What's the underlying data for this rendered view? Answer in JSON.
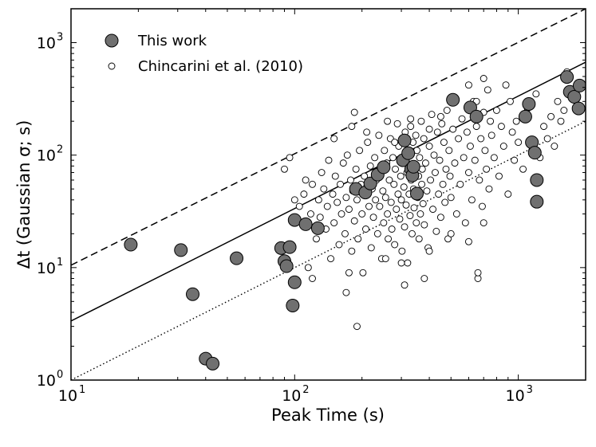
{
  "chart_data": {
    "type": "scatter",
    "xscale": "log",
    "yscale": "log",
    "xlim": [
      10,
      2000
    ],
    "ylim": [
      1,
      2000
    ],
    "xlabel": "Peak Time (s)",
    "ylabel": "Δt (Gaussian σ; s)",
    "xticks": [
      {
        "base": "10",
        "exp": "1",
        "value": 10
      },
      {
        "base": "10",
        "exp": "2",
        "value": 100
      },
      {
        "base": "10",
        "exp": "3",
        "value": 1000
      }
    ],
    "yticks": [
      {
        "base": "10",
        "exp": "0",
        "value": 1
      },
      {
        "base": "10",
        "exp": "1",
        "value": 10
      },
      {
        "base": "10",
        "exp": "2",
        "value": 100
      },
      {
        "base": "10",
        "exp": "3",
        "value": 1000
      }
    ],
    "legend": {
      "position": "top-left"
    },
    "lines": [
      {
        "style": "dashed",
        "color": "#000000",
        "x": [
          10,
          2000
        ],
        "y": [
          10.5,
          2000
        ]
      },
      {
        "style": "solid",
        "color": "#000000",
        "x": [
          10,
          2000
        ],
        "y": [
          3.35,
          670
        ]
      },
      {
        "style": "dotted",
        "color": "#000000",
        "x": [
          10,
          2000
        ],
        "y": [
          1.0,
          200
        ]
      }
    ],
    "series": [
      {
        "name": "This work",
        "marker": "large-filled-circle",
        "color": "#707070",
        "points": [
          [
            18.5,
            16.0
          ],
          [
            31,
            14.3
          ],
          [
            35,
            5.8
          ],
          [
            40,
            1.55
          ],
          [
            43,
            1.4
          ],
          [
            55,
            12.1
          ],
          [
            87,
            14.9
          ],
          [
            90,
            11.4
          ],
          [
            92,
            10.3
          ],
          [
            95,
            15.2
          ],
          [
            98,
            4.6
          ],
          [
            100,
            7.4
          ],
          [
            100,
            26.5
          ],
          [
            112,
            24.3
          ],
          [
            127,
            22.4
          ],
          [
            188,
            50
          ],
          [
            207,
            46.5
          ],
          [
            218,
            56
          ],
          [
            235,
            67
          ],
          [
            250,
            78
          ],
          [
            305,
            90
          ],
          [
            310,
            135
          ],
          [
            322,
            104
          ],
          [
            332,
            74.7
          ],
          [
            336,
            66
          ],
          [
            340,
            78.8
          ],
          [
            352,
            45.5
          ],
          [
            510,
            310
          ],
          [
            610,
            265
          ],
          [
            650,
            220
          ],
          [
            1075,
            220
          ],
          [
            1115,
            285
          ],
          [
            1150,
            130
          ],
          [
            1185,
            105
          ],
          [
            1210,
            60
          ],
          [
            1210,
            38.5
          ],
          [
            1650,
            495
          ],
          [
            1700,
            365
          ],
          [
            1780,
            330
          ],
          [
            1860,
            260
          ],
          [
            1880,
            415
          ]
        ]
      },
      {
        "name": "Chincarini et al. (2010)",
        "marker": "small-open-circle",
        "color": "#ffffff",
        "points": [
          [
            90,
            75
          ],
          [
            95,
            95
          ],
          [
            100,
            40
          ],
          [
            105,
            35
          ],
          [
            110,
            45
          ],
          [
            112,
            60
          ],
          [
            118,
            30
          ],
          [
            120,
            55
          ],
          [
            125,
            18
          ],
          [
            128,
            40
          ],
          [
            130,
            28
          ],
          [
            132,
            70
          ],
          [
            135,
            50
          ],
          [
            138,
            22
          ],
          [
            140,
            35
          ],
          [
            142,
            90
          ],
          [
            145,
            12
          ],
          [
            148,
            45
          ],
          [
            150,
            25
          ],
          [
            152,
            65
          ],
          [
            155,
            38
          ],
          [
            158,
            16
          ],
          [
            160,
            55
          ],
          [
            162,
            30
          ],
          [
            165,
            85
          ],
          [
            168,
            20
          ],
          [
            170,
            42
          ],
          [
            172,
            100
          ],
          [
            175,
            33
          ],
          [
            178,
            60
          ],
          [
            180,
            14
          ],
          [
            182,
            48
          ],
          [
            185,
            26
          ],
          [
            188,
            75
          ],
          [
            190,
            40
          ],
          [
            192,
            18
          ],
          [
            195,
            110
          ],
          [
            198,
            55
          ],
          [
            200,
            30
          ],
          [
            202,
            9
          ],
          [
            205,
            65
          ],
          [
            208,
            22
          ],
          [
            210,
            45
          ],
          [
            212,
            130
          ],
          [
            215,
            35
          ],
          [
            218,
            80
          ],
          [
            220,
            15
          ],
          [
            222,
            50
          ],
          [
            225,
            28
          ],
          [
            228,
            95
          ],
          [
            230,
            40
          ],
          [
            232,
            60
          ],
          [
            235,
            20
          ],
          [
            238,
            150
          ],
          [
            240,
            35
          ],
          [
            242,
            70
          ],
          [
            245,
            12
          ],
          [
            248,
            48
          ],
          [
            250,
            25
          ],
          [
            252,
            110
          ],
          [
            255,
            42
          ],
          [
            258,
            85
          ],
          [
            260,
            30
          ],
          [
            262,
            18
          ],
          [
            265,
            60
          ],
          [
            268,
            140
          ],
          [
            270,
            38
          ],
          [
            272,
            22
          ],
          [
            275,
            95
          ],
          [
            278,
            55
          ],
          [
            280,
            16
          ],
          [
            282,
            75
          ],
          [
            285,
            33
          ],
          [
            288,
            190
          ],
          [
            290,
            45
          ],
          [
            292,
            120
          ],
          [
            295,
            27
          ],
          [
            298,
            65
          ],
          [
            300,
            40
          ],
          [
            302,
            14
          ],
          [
            305,
            85
          ],
          [
            308,
            52
          ],
          [
            310,
            23
          ],
          [
            312,
            160
          ],
          [
            315,
            36
          ],
          [
            318,
            70
          ],
          [
            320,
            11
          ],
          [
            322,
            100
          ],
          [
            325,
            45
          ],
          [
            328,
            29
          ],
          [
            330,
            180
          ],
          [
            332,
            60
          ],
          [
            335,
            20
          ],
          [
            338,
            130
          ],
          [
            340,
            50
          ],
          [
            342,
            34
          ],
          [
            345,
            80
          ],
          [
            348,
            150
          ],
          [
            350,
            25
          ],
          [
            352,
            110
          ],
          [
            355,
            42
          ],
          [
            358,
            65
          ],
          [
            360,
            18
          ],
          [
            362,
            95
          ],
          [
            365,
            30
          ],
          [
            368,
            200
          ],
          [
            370,
            55
          ],
          [
            372,
            75
          ],
          [
            375,
            37
          ],
          [
            378,
            140
          ],
          [
            380,
            24
          ],
          [
            385,
            85
          ],
          [
            390,
            48
          ],
          [
            395,
            15
          ],
          [
            400,
            120
          ],
          [
            405,
            60
          ],
          [
            410,
            230
          ],
          [
            415,
            33
          ],
          [
            420,
            100
          ],
          [
            425,
            70
          ],
          [
            430,
            21
          ],
          [
            435,
            160
          ],
          [
            440,
            45
          ],
          [
            445,
            90
          ],
          [
            450,
            28
          ],
          [
            455,
            190
          ],
          [
            460,
            55
          ],
          [
            465,
            130
          ],
          [
            470,
            38
          ],
          [
            475,
            75
          ],
          [
            480,
            250
          ],
          [
            485,
            18
          ],
          [
            490,
            110
          ],
          [
            495,
            65
          ],
          [
            500,
            42
          ],
          [
            510,
            170
          ],
          [
            520,
            85
          ],
          [
            530,
            30
          ],
          [
            540,
            140
          ],
          [
            550,
            55
          ],
          [
            560,
            210
          ],
          [
            570,
            95
          ],
          [
            580,
            25
          ],
          [
            590,
            160
          ],
          [
            600,
            70
          ],
          [
            610,
            120
          ],
          [
            620,
            40
          ],
          [
            630,
            300
          ],
          [
            640,
            90
          ],
          [
            650,
            180
          ],
          [
            660,
            8
          ],
          [
            670,
            60
          ],
          [
            680,
            140
          ],
          [
            690,
            35
          ],
          [
            700,
            240
          ],
          [
            710,
            110
          ],
          [
            720,
            75
          ],
          [
            730,
            380
          ],
          [
            740,
            50
          ],
          [
            750,
            200
          ],
          [
            760,
            150
          ],
          [
            780,
            95
          ],
          [
            800,
            250
          ],
          [
            820,
            65
          ],
          [
            840,
            180
          ],
          [
            860,
            120
          ],
          [
            880,
            420
          ],
          [
            900,
            45
          ],
          [
            920,
            300
          ],
          [
            940,
            160
          ],
          [
            960,
            90
          ],
          [
            980,
            200
          ],
          [
            1000,
            130
          ],
          [
            1050,
            75
          ],
          [
            1100,
            260
          ],
          [
            1150,
            110
          ],
          [
            1200,
            350
          ],
          [
            1250,
            95
          ],
          [
            1300,
            180
          ],
          [
            1350,
            140
          ],
          [
            1400,
            220
          ],
          [
            1450,
            120
          ],
          [
            1500,
            300
          ],
          [
            1550,
            200
          ],
          [
            1600,
            250
          ],
          [
            1650,
            550
          ],
          [
            115,
            10
          ],
          [
            120,
            8
          ],
          [
            170,
            6
          ],
          [
            175,
            9
          ],
          [
            190,
            3
          ],
          [
            255,
            12
          ],
          [
            300,
            11
          ],
          [
            310,
            7
          ],
          [
            380,
            8
          ],
          [
            400,
            14
          ],
          [
            500,
            20
          ],
          [
            600,
            17
          ],
          [
            660,
            9
          ],
          [
            700,
            25
          ],
          [
            150,
            140
          ],
          [
            180,
            180
          ],
          [
            185,
            240
          ],
          [
            210,
            160
          ],
          [
            260,
            200
          ],
          [
            280,
            130
          ],
          [
            330,
            210
          ],
          [
            400,
            170
          ],
          [
            450,
            220
          ],
          [
            600,
            420
          ],
          [
            700,
            480
          ],
          [
            650,
            300
          ]
        ]
      }
    ]
  }
}
